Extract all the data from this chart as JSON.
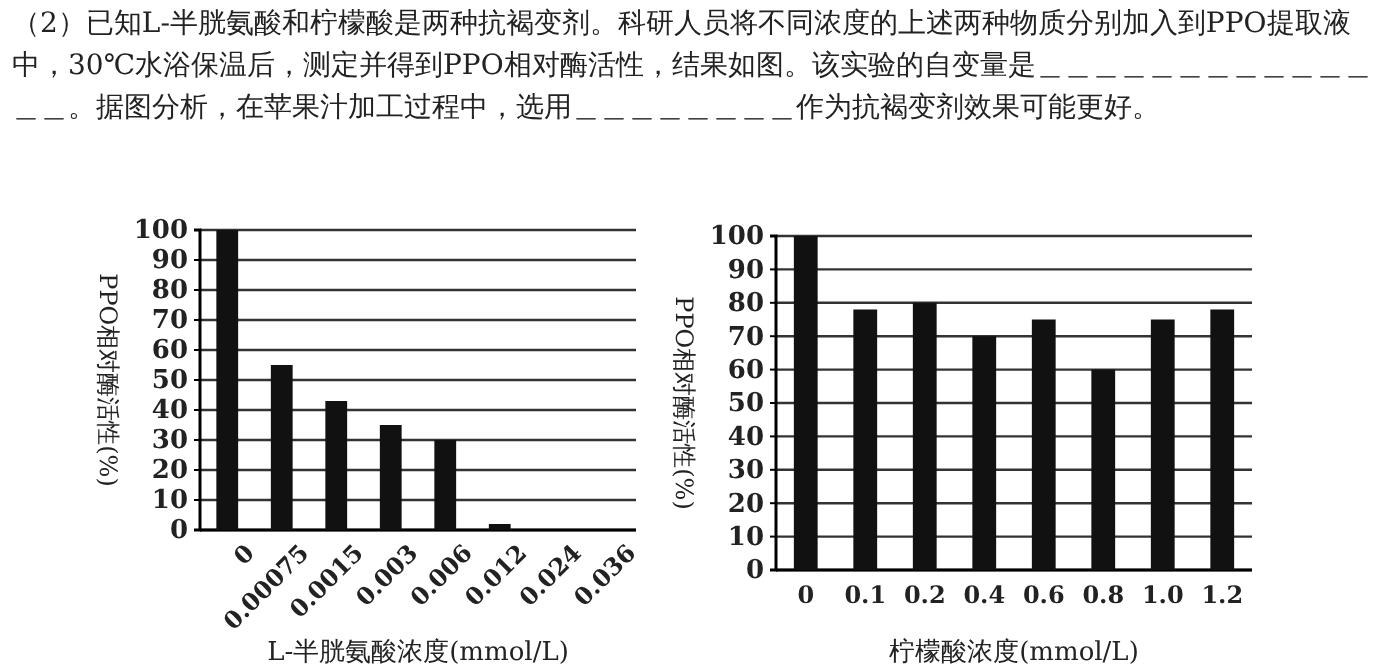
{
  "chart_data": [
    {
      "type": "bar",
      "categories": [
        "0",
        "0.00075",
        "0.0015",
        "0.003",
        "0.006",
        "0.012",
        "0.024",
        "0.036"
      ],
      "values": [
        100,
        55,
        43,
        35,
        30,
        2,
        0,
        0
      ],
      "color": "#111111",
      "xlabel": "L-半胱氨酸浓度(mmol/L)",
      "ylabel": "PPO相对酶活性(%)",
      "ylim": [
        0,
        100
      ],
      "yticks": [
        0,
        10,
        20,
        30,
        40,
        50,
        60,
        70,
        80,
        90,
        100
      ],
      "grid": "y",
      "annotations": [
        "（2）已知L-半胱氨酸和柠檬酸是两种抗褐变剂。科研人员将不同浓度的上述两种物质分别加入到PPO提取液中，30℃水浴保温后，测定并得到PPO相对酶活性，结果如图。该实验的自变量是＿＿＿＿＿＿＿＿＿＿＿＿＿＿。据图分析，在苹果汁加工过程中，选用＿＿＿＿＿＿＿＿作为抗褐变剂效果可能更好。"
      ]
    },
    {
      "type": "bar",
      "categories": [
        "0",
        "0.1",
        "0.2",
        "0.4",
        "0.6",
        "0.8",
        "1.0",
        "1.2"
      ],
      "values": [
        100,
        78,
        80,
        70,
        75,
        60,
        75,
        78
      ],
      "color": "#111111",
      "xlabel": "柠檬酸浓度(mmol/L)",
      "ylabel": "PPO相对酶活性(%)",
      "ylim": [
        0,
        100
      ],
      "yticks": [
        0,
        10,
        20,
        30,
        40,
        50,
        60,
        70,
        80,
        90,
        100
      ],
      "grid": "y"
    }
  ]
}
